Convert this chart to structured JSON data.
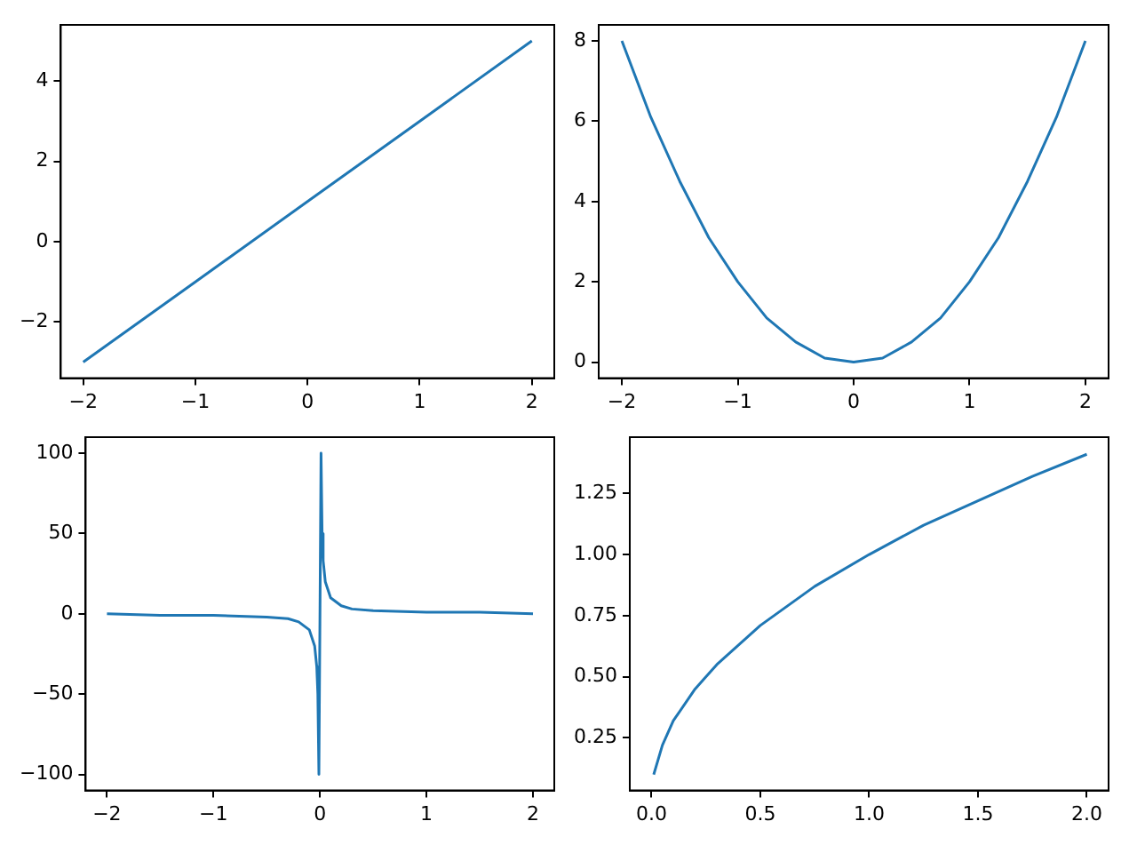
{
  "chart_data": [
    {
      "type": "line",
      "x": [
        -2,
        -1,
        0,
        1,
        2
      ],
      "values": [
        -3,
        -1,
        1,
        3,
        5
      ],
      "color": "#1f77b4",
      "xlim": [
        -2.2,
        2.2
      ],
      "ylim": [
        -3.4,
        5.4
      ],
      "xticks": [
        {
          "value": -2,
          "label": "−2"
        },
        {
          "value": -1,
          "label": "−1"
        },
        0,
        1,
        2
      ],
      "yticks": [
        {
          "value": -2,
          "label": "−2"
        },
        0,
        2,
        4
      ]
    },
    {
      "type": "line",
      "x": [
        -2,
        -1.75,
        -1.5,
        -1.25,
        -1,
        -0.75,
        -0.5,
        -0.25,
        0,
        0.25,
        0.5,
        0.75,
        1,
        1.25,
        1.5,
        1.75,
        2
      ],
      "values": [
        8,
        6.1,
        4.5,
        3.1,
        2,
        1.1,
        0.5,
        0.1,
        0,
        0.1,
        0.5,
        1.1,
        2,
        3.1,
        4.5,
        6.1,
        8
      ],
      "color": "#1f77b4",
      "xlim": [
        -2.2,
        2.2
      ],
      "ylim": [
        -0.4,
        8.4
      ],
      "xticks": [
        {
          "value": -2,
          "label": "−2"
        },
        {
          "value": -1,
          "label": "−1"
        },
        0,
        1,
        2
      ],
      "yticks": [
        0,
        2,
        4,
        6,
        8
      ]
    },
    {
      "type": "line",
      "x": [
        -2,
        -1.5,
        -1,
        -0.5,
        -0.3,
        -0.2,
        -0.1,
        -0.05,
        -0.03,
        -0.02,
        -0.01,
        0.01,
        0.02,
        0.03,
        0.05,
        0.1,
        0.2,
        0.3,
        0.5,
        1,
        1.5,
        2
      ],
      "values": [
        0,
        -1,
        -1,
        -2,
        -3,
        -5,
        -10,
        -20,
        -33,
        -50,
        -100,
        100,
        50,
        33,
        20,
        10,
        5,
        3,
        2,
        1,
        1,
        0
      ],
      "color": "#1f77b4",
      "xlim": [
        -2.2,
        2.2
      ],
      "ylim": [
        -110,
        110
      ],
      "xticks": [
        {
          "value": -2,
          "label": "−2"
        },
        {
          "value": -1,
          "label": "−1"
        },
        0,
        1,
        2
      ],
      "yticks": [
        {
          "value": -100,
          "label": "−100"
        },
        {
          "value": -50,
          "label": "−50"
        },
        0,
        50,
        100
      ]
    },
    {
      "type": "line",
      "x": [
        0.01,
        0.05,
        0.1,
        0.2,
        0.3,
        0.5,
        0.75,
        1,
        1.25,
        1.5,
        1.75,
        2
      ],
      "values": [
        0.1,
        0.22,
        0.32,
        0.45,
        0.55,
        0.71,
        0.87,
        1,
        1.12,
        1.22,
        1.32,
        1.41
      ],
      "color": "#1f77b4",
      "xlim": [
        -0.1,
        2.1
      ],
      "ylim": [
        0.035,
        1.48
      ],
      "xticks": [
        {
          "value": 0,
          "label": "0.0"
        },
        {
          "value": 0.5,
          "label": "0.5"
        },
        {
          "value": 1,
          "label": "1.0"
        },
        {
          "value": 1.5,
          "label": "1.5"
        },
        {
          "value": 2,
          "label": "2.0"
        }
      ],
      "yticks": [
        0.25,
        {
          "value": 0.5,
          "label": "0.50"
        },
        0.75,
        {
          "value": 1,
          "label": "1.00"
        },
        1.25
      ]
    }
  ]
}
